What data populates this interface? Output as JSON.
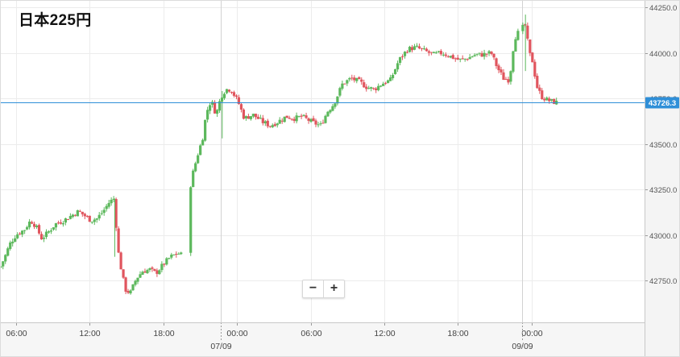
{
  "title": "日本225円",
  "zoom": {
    "minus": "−",
    "plus": "+"
  },
  "current_price": {
    "label": "43726.3",
    "value": 43726.3,
    "color": "#2f8fd8"
  },
  "colors": {
    "up": "#5cb85c",
    "down": "#e0555e",
    "grid": "#ececec",
    "axis": "#9a9a9a"
  },
  "chart_data": {
    "type": "candlestick",
    "title": "日本225円",
    "ylim": [
      42520,
      44290
    ],
    "yticks": [
      42750,
      43000,
      43250,
      43500,
      43750,
      44000,
      44250
    ],
    "ytick_labels": [
      "42750.0",
      "43000.0",
      "43250.0",
      "43500.0",
      "43750.0",
      "44000.0",
      "44250.0"
    ],
    "xlim": [
      4.7,
      57.2
    ],
    "xticks": [
      {
        "t": 6,
        "label": "06:00"
      },
      {
        "t": 12,
        "label": "12:00"
      },
      {
        "t": 18,
        "label": "18:00"
      },
      {
        "t": 24,
        "label": "00:00"
      },
      {
        "t": 30,
        "label": "06:00"
      },
      {
        "t": 36,
        "label": "12:00"
      },
      {
        "t": 42,
        "label": "18:00"
      },
      {
        "t": 48,
        "label": "00:00"
      }
    ],
    "date_markers": [
      {
        "t": 22.7,
        "label": "07/09"
      },
      {
        "t": 47.2,
        "label": "09/09"
      }
    ],
    "anchors": [
      [
        4.7,
        42820
      ],
      [
        5.1,
        42880
      ],
      [
        5.5,
        42950
      ],
      [
        6.0,
        43000
      ],
      [
        6.7,
        43030
      ],
      [
        7.2,
        43080
      ],
      [
        7.6,
        43050
      ],
      [
        8.1,
        42980
      ],
      [
        8.7,
        43020
      ],
      [
        9.2,
        43060
      ],
      [
        9.9,
        43080
      ],
      [
        10.6,
        43110
      ],
      [
        11.1,
        43130
      ],
      [
        11.7,
        43100
      ],
      [
        12.1,
        43080
      ],
      [
        12.6,
        43090
      ],
      [
        13.1,
        43130
      ],
      [
        13.6,
        43180
      ],
      [
        14.0,
        43200
      ],
      [
        14.3,
        42920
      ],
      [
        14.6,
        42800
      ],
      [
        14.9,
        42700
      ],
      [
        15.3,
        42680
      ],
      [
        15.8,
        42760
      ],
      [
        16.3,
        42800
      ],
      [
        16.9,
        42810
      ],
      [
        17.4,
        42790
      ],
      [
        17.9,
        42830
      ],
      [
        18.3,
        42860
      ],
      [
        18.6,
        42880
      ],
      [
        19.2,
        42900
      ],
      [
        19.5,
        42890
      ],
      [
        20.3,
        43310
      ],
      [
        20.8,
        43440
      ],
      [
        21.2,
        43530
      ],
      [
        21.5,
        43670
      ],
      [
        21.9,
        43740
      ],
      [
        22.3,
        43660
      ],
      [
        22.7,
        43760
      ],
      [
        23.1,
        43800
      ],
      [
        23.5,
        43800
      ],
      [
        24.1,
        43730
      ],
      [
        24.6,
        43640
      ],
      [
        25.3,
        43660
      ],
      [
        26.1,
        43620
      ],
      [
        26.7,
        43600
      ],
      [
        27.3,
        43620
      ],
      [
        28.0,
        43650
      ],
      [
        28.7,
        43640
      ],
      [
        29.3,
        43650
      ],
      [
        30.1,
        43620
      ],
      [
        30.8,
        43600
      ],
      [
        31.4,
        43680
      ],
      [
        31.9,
        43720
      ],
      [
        32.6,
        43830
      ],
      [
        33.3,
        43860
      ],
      [
        34.0,
        43840
      ],
      [
        34.6,
        43810
      ],
      [
        35.2,
        43800
      ],
      [
        35.8,
        43830
      ],
      [
        36.5,
        43850
      ],
      [
        37.2,
        43960
      ],
      [
        37.9,
        44020
      ],
      [
        38.6,
        44030
      ],
      [
        39.3,
        44010
      ],
      [
        40.0,
        43990
      ],
      [
        40.7,
        44000
      ],
      [
        41.4,
        43980
      ],
      [
        42.1,
        43960
      ],
      [
        42.8,
        43970
      ],
      [
        43.4,
        43990
      ],
      [
        44.0,
        43990
      ],
      [
        44.7,
        44000
      ],
      [
        45.2,
        43920
      ],
      [
        45.7,
        43860
      ],
      [
        46.2,
        43850
      ],
      [
        46.6,
        44080
      ],
      [
        47.1,
        44130
      ],
      [
        47.5,
        44150
      ],
      [
        47.8,
        44000
      ],
      [
        48.1,
        43950
      ],
      [
        48.4,
        43820
      ],
      [
        48.8,
        43760
      ],
      [
        49.3,
        43740
      ],
      [
        49.8,
        43730
      ],
      [
        50.1,
        43726.3
      ]
    ]
  }
}
